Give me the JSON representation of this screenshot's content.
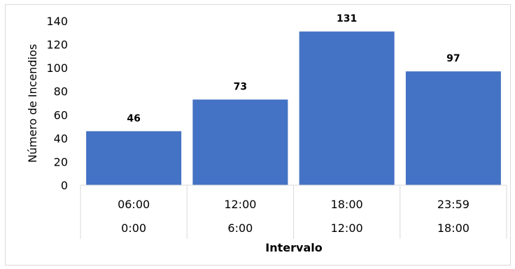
{
  "chart_data": {
    "type": "bar",
    "categories": [
      {
        "upper": "06:00",
        "lower": "0:00"
      },
      {
        "upper": "12:00",
        "lower": "6:00"
      },
      {
        "upper": "18:00",
        "lower": "12:00"
      },
      {
        "upper": "23:59",
        "lower": "18:00"
      }
    ],
    "values": [
      46,
      73,
      131,
      97
    ],
    "data_labels": [
      "46",
      "73",
      "131",
      "97"
    ],
    "yticks": [
      "0",
      "20",
      "40",
      "60",
      "80",
      "100",
      "120",
      "140"
    ],
    "ylim": [
      0,
      140
    ],
    "ylabel": "Número de Incendios",
    "xlabel": "Intervalo",
    "bar_color": "#4472c4",
    "grid": false,
    "legend": "none"
  }
}
